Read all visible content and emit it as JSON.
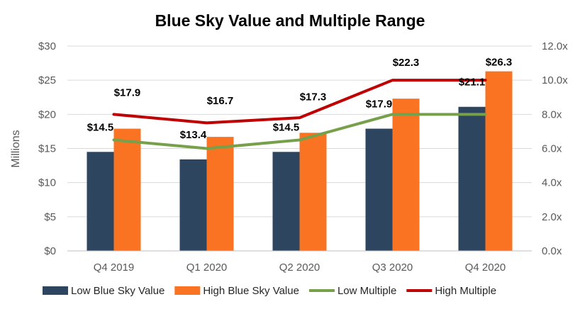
{
  "chart_data": {
    "type": "bar",
    "title": "Blue Sky Value and Multiple Range",
    "ylabel": "Millions",
    "categories": [
      "Q4 2019",
      "Q1 2020",
      "Q2 2020",
      "Q3 2020",
      "Q4 2020"
    ],
    "ylim": [
      0,
      30
    ],
    "y_ticks": [
      "$0",
      "$5",
      "$10",
      "$15",
      "$20",
      "$25",
      "$30"
    ],
    "y2lim": [
      0,
      12
    ],
    "y2_ticks": [
      "0.0x",
      "2.0x",
      "4.0x",
      "6.0x",
      "8.0x",
      "10.0x",
      "12.0x"
    ],
    "grid": true,
    "legend_position": "bottom",
    "series": [
      {
        "name": "Low Blue Sky Value",
        "kind": "bar",
        "axis": "left",
        "color": "#2E4560",
        "values": [
          14.5,
          13.4,
          14.5,
          17.9,
          21.1
        ],
        "labels": [
          "$14.5",
          "$13.4",
          "$14.5",
          "$17.9",
          "$21.1"
        ]
      },
      {
        "name": "High Blue Sky Value",
        "kind": "bar",
        "axis": "left",
        "color": "#F97322",
        "values": [
          17.9,
          16.7,
          17.3,
          22.3,
          26.3
        ],
        "labels": [
          "$17.9",
          "$16.7",
          "$17.3",
          "$22.3",
          "$26.3"
        ]
      },
      {
        "name": "Low Multiple",
        "kind": "line",
        "axis": "right",
        "color": "#77A04A",
        "values": [
          6.5,
          6.0,
          6.5,
          8.0,
          8.0
        ]
      },
      {
        "name": "High Multiple",
        "kind": "line",
        "axis": "right",
        "color": "#C00000",
        "values": [
          8.0,
          7.5,
          7.8,
          10.0,
          10.0
        ]
      }
    ]
  }
}
